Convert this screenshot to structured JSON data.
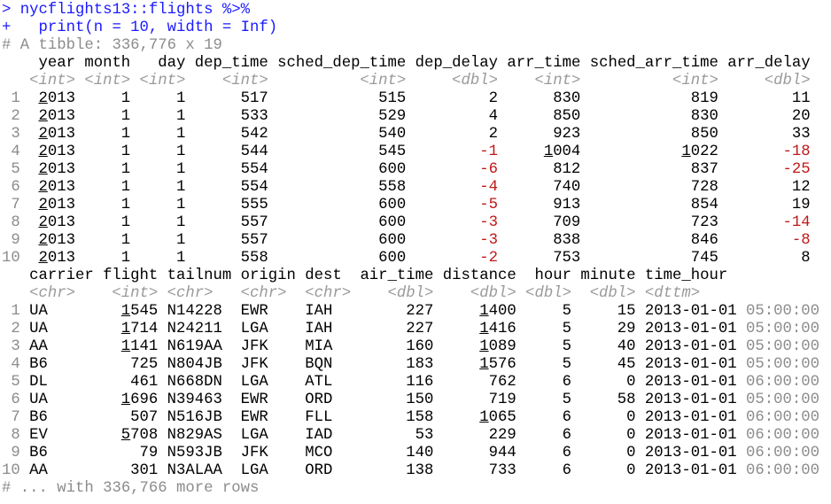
{
  "console": {
    "commands": [
      "> nycflights13::flights %>%",
      "+   print(n = 10, width = Inf)"
    ],
    "summary": "# A tibble: 336,776 x 19",
    "tables": [
      {
        "columns": [
          {
            "name": "year",
            "type": "<int>"
          },
          {
            "name": "month",
            "type": "<int>"
          },
          {
            "name": "day",
            "type": "<int>"
          },
          {
            "name": "dep_time",
            "type": "<int>"
          },
          {
            "name": "sched_dep_time",
            "type": "<int>"
          },
          {
            "name": "dep_delay",
            "type": "<dbl>"
          },
          {
            "name": "arr_time",
            "type": "<int>"
          },
          {
            "name": "sched_arr_time",
            "type": "<int>"
          },
          {
            "name": "arr_delay",
            "type": "<dbl>"
          }
        ],
        "rows": [
          {
            "n": 1,
            "cells": [
              2013,
              1,
              1,
              517,
              515,
              2,
              830,
              819,
              11
            ]
          },
          {
            "n": 2,
            "cells": [
              2013,
              1,
              1,
              533,
              529,
              4,
              850,
              830,
              20
            ]
          },
          {
            "n": 3,
            "cells": [
              2013,
              1,
              1,
              542,
              540,
              2,
              923,
              850,
              33
            ]
          },
          {
            "n": 4,
            "cells": [
              2013,
              1,
              1,
              544,
              545,
              -1,
              1004,
              1022,
              -18
            ]
          },
          {
            "n": 5,
            "cells": [
              2013,
              1,
              1,
              554,
              600,
              -6,
              812,
              837,
              -25
            ]
          },
          {
            "n": 6,
            "cells": [
              2013,
              1,
              1,
              554,
              558,
              -4,
              740,
              728,
              12
            ]
          },
          {
            "n": 7,
            "cells": [
              2013,
              1,
              1,
              555,
              600,
              -5,
              913,
              854,
              19
            ]
          },
          {
            "n": 8,
            "cells": [
              2013,
              1,
              1,
              557,
              600,
              -3,
              709,
              723,
              -14
            ]
          },
          {
            "n": 9,
            "cells": [
              2013,
              1,
              1,
              557,
              600,
              -3,
              838,
              846,
              -8
            ]
          },
          {
            "n": 10,
            "cells": [
              2013,
              1,
              1,
              558,
              600,
              -2,
              753,
              745,
              8
            ]
          }
        ]
      },
      {
        "columns": [
          {
            "name": "carrier",
            "type": "<chr>"
          },
          {
            "name": "flight",
            "type": "<int>"
          },
          {
            "name": "tailnum",
            "type": "<chr>"
          },
          {
            "name": "origin",
            "type": "<chr>"
          },
          {
            "name": "dest",
            "type": "<chr>"
          },
          {
            "name": "air_time",
            "type": "<dbl>"
          },
          {
            "name": "distance",
            "type": "<dbl>"
          },
          {
            "name": "hour",
            "type": "<dbl>"
          },
          {
            "name": "minute",
            "type": "<dbl>"
          },
          {
            "name": "time_hour",
            "type": "<dttm>"
          }
        ],
        "rows": [
          {
            "n": 1,
            "cells": [
              "UA",
              1545,
              "N14228",
              "EWR",
              "IAH",
              227,
              1400,
              5,
              15,
              "2013-01-01 05:00:00"
            ]
          },
          {
            "n": 2,
            "cells": [
              "UA",
              1714,
              "N24211",
              "LGA",
              "IAH",
              227,
              1416,
              5,
              29,
              "2013-01-01 05:00:00"
            ]
          },
          {
            "n": 3,
            "cells": [
              "AA",
              1141,
              "N619AA",
              "JFK",
              "MIA",
              160,
              1089,
              5,
              40,
              "2013-01-01 05:00:00"
            ]
          },
          {
            "n": 4,
            "cells": [
              "B6",
              725,
              "N804JB",
              "JFK",
              "BQN",
              183,
              1576,
              5,
              45,
              "2013-01-01 05:00:00"
            ]
          },
          {
            "n": 5,
            "cells": [
              "DL",
              461,
              "N668DN",
              "LGA",
              "ATL",
              116,
              762,
              6,
              0,
              "2013-01-01 06:00:00"
            ]
          },
          {
            "n": 6,
            "cells": [
              "UA",
              1696,
              "N39463",
              "EWR",
              "ORD",
              150,
              719,
              5,
              58,
              "2013-01-01 05:00:00"
            ]
          },
          {
            "n": 7,
            "cells": [
              "B6",
              507,
              "N516JB",
              "EWR",
              "FLL",
              158,
              1065,
              6,
              0,
              "2013-01-01 06:00:00"
            ]
          },
          {
            "n": 8,
            "cells": [
              "EV",
              5708,
              "N829AS",
              "LGA",
              "IAD",
              53,
              229,
              6,
              0,
              "2013-01-01 06:00:00"
            ]
          },
          {
            "n": 9,
            "cells": [
              "B6",
              79,
              "N593JB",
              "JFK",
              "MCO",
              140,
              944,
              6,
              0,
              "2013-01-01 06:00:00"
            ]
          },
          {
            "n": 10,
            "cells": [
              "AA",
              301,
              "N3ALAA",
              "LGA",
              "ORD",
              138,
              733,
              6,
              0,
              "2013-01-01 06:00:00"
            ]
          }
        ]
      }
    ],
    "footer": "# ... with 336,766 more rows"
  }
}
